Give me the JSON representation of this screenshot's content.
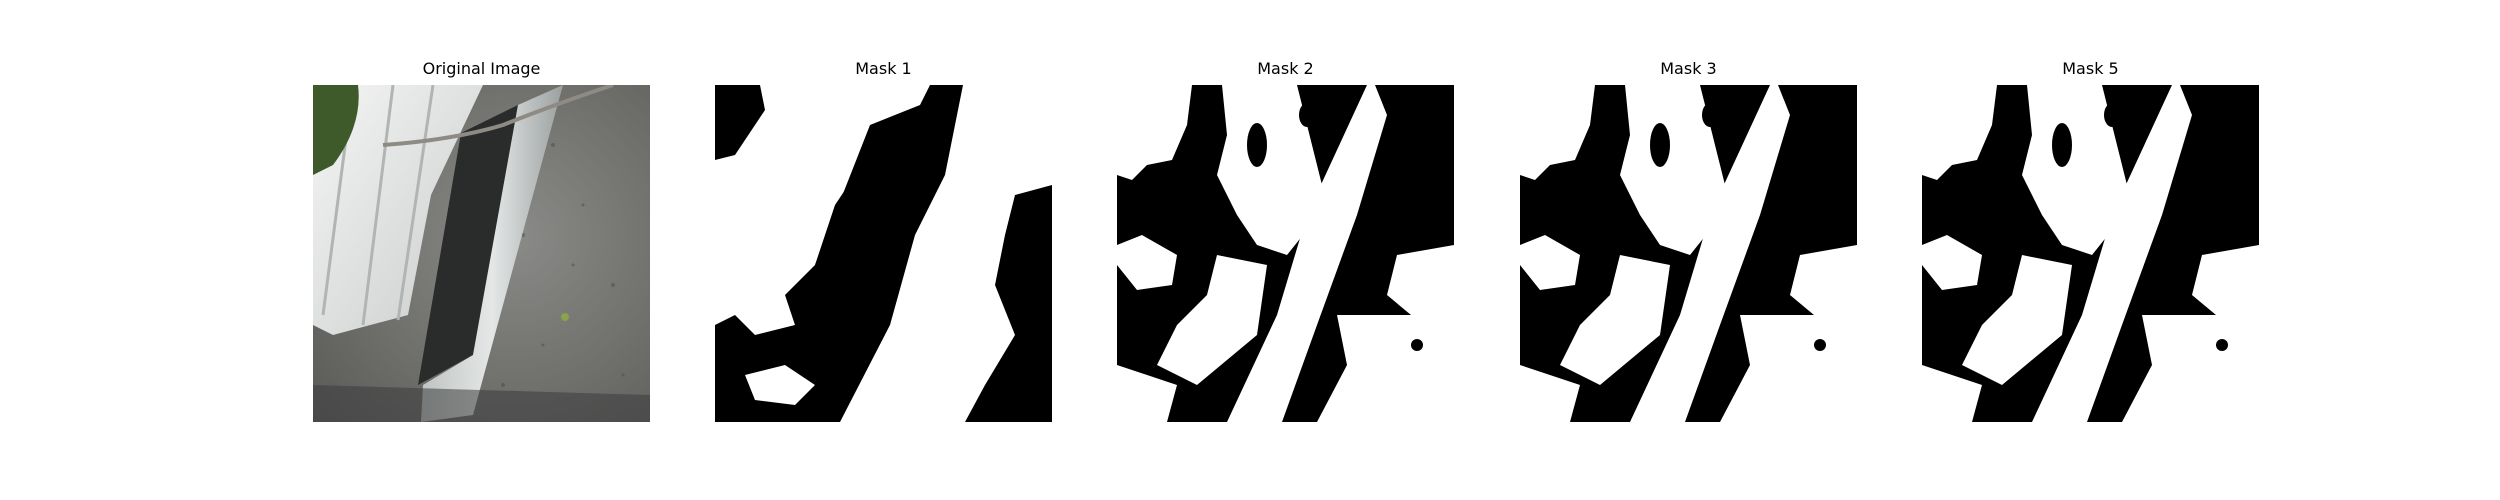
{
  "figure": {
    "panels": [
      {
        "title": "Original Image",
        "kind": "photo"
      },
      {
        "title": "Mask 1",
        "kind": "mask",
        "variant": "mask1"
      },
      {
        "title": "Mask 2",
        "kind": "mask",
        "variant": "mask2"
      },
      {
        "title": "Mask 3",
        "kind": "mask",
        "variant": "mask3"
      },
      {
        "title": "Mask 5",
        "kind": "mask",
        "variant": "mask5"
      }
    ],
    "colors": {
      "mask_fg": "#ffffff",
      "mask_bg": "#000000"
    }
  }
}
